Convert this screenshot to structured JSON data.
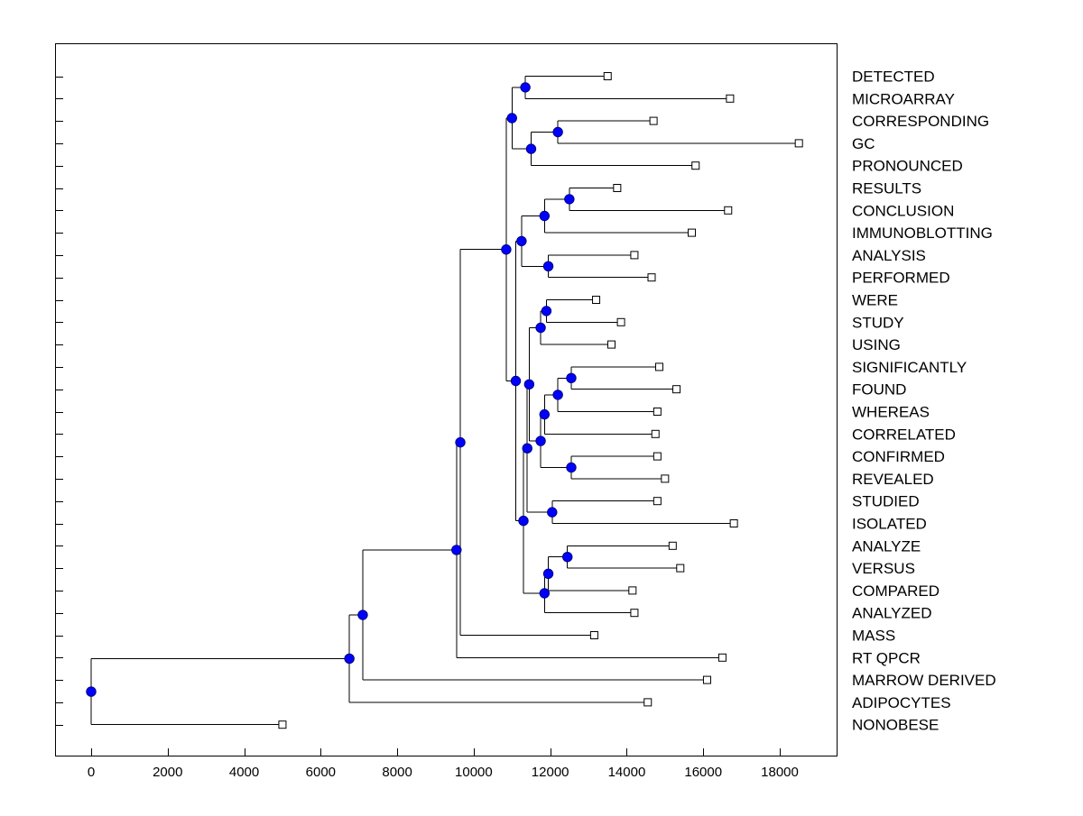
{
  "chart_data": {
    "type": "dendrogram",
    "orientation": "horizontal",
    "title": "",
    "xlabel": "",
    "ylabel": "",
    "xlim": [
      -1000,
      19500
    ],
    "x_ticks": [
      0,
      2000,
      4000,
      6000,
      8000,
      10000,
      12000,
      14000,
      16000,
      18000
    ],
    "leaves": [
      {
        "label": "DETECTED",
        "x": 13500
      },
      {
        "label": "MICROARRAY",
        "x": 16700
      },
      {
        "label": "CORRESPONDING",
        "x": 14700
      },
      {
        "label": "GC",
        "x": 18500
      },
      {
        "label": "PRONOUNCED",
        "x": 15800
      },
      {
        "label": "RESULTS",
        "x": 13750
      },
      {
        "label": "CONCLUSION",
        "x": 16650
      },
      {
        "label": "IMMUNOBLOTTING",
        "x": 15700
      },
      {
        "label": "ANALYSIS",
        "x": 14200
      },
      {
        "label": "PERFORMED",
        "x": 14650
      },
      {
        "label": "WERE",
        "x": 13200
      },
      {
        "label": "STUDY",
        "x": 13850
      },
      {
        "label": "USING",
        "x": 13600
      },
      {
        "label": "SIGNIFICANTLY",
        "x": 14850
      },
      {
        "label": "FOUND",
        "x": 15300
      },
      {
        "label": "WHEREAS",
        "x": 14800
      },
      {
        "label": "CORRELATED",
        "x": 14750
      },
      {
        "label": "CONFIRMED",
        "x": 14800
      },
      {
        "label": "REVEALED",
        "x": 15000
      },
      {
        "label": "STUDIED",
        "x": 14800
      },
      {
        "label": "ISOLATED",
        "x": 16800
      },
      {
        "label": "ANALYZE",
        "x": 15200
      },
      {
        "label": "VERSUS",
        "x": 15400
      },
      {
        "label": "COMPARED",
        "x": 14150
      },
      {
        "label": "ANALYZED",
        "x": 14200
      },
      {
        "label": "MASS",
        "x": 13150
      },
      {
        "label": "RT QPCR",
        "x": 16500
      },
      {
        "label": "MARROW DERIVED",
        "x": 16100
      },
      {
        "label": "ADIPOCYTES",
        "x": 14550
      },
      {
        "label": "NONOBESE",
        "x": 5000
      }
    ],
    "merges": [
      {
        "id": "n1",
        "x": 11350,
        "children": [
          "DETECTED",
          "MICROARRAY"
        ]
      },
      {
        "id": "n2",
        "x": 12200,
        "children": [
          "CORRESPONDING",
          "GC"
        ]
      },
      {
        "id": "n3",
        "x": 11500,
        "children": [
          "n2",
          "PRONOUNCED"
        ]
      },
      {
        "id": "n4",
        "x": 11000,
        "children": [
          "n1",
          "n3"
        ]
      },
      {
        "id": "n5",
        "x": 12500,
        "children": [
          "RESULTS",
          "CONCLUSION"
        ]
      },
      {
        "id": "n6",
        "x": 11850,
        "children": [
          "n5",
          "IMMUNOBLOTTING"
        ]
      },
      {
        "id": "n7",
        "x": 11950,
        "children": [
          "ANALYSIS",
          "PERFORMED"
        ]
      },
      {
        "id": "n8",
        "x": 11250,
        "children": [
          "n6",
          "n7"
        ]
      },
      {
        "id": "n9",
        "x": 11900,
        "children": [
          "WERE",
          "STUDY"
        ]
      },
      {
        "id": "n10",
        "x": 11750,
        "children": [
          "n9",
          "USING"
        ]
      },
      {
        "id": "n11",
        "x": 12550,
        "children": [
          "SIGNIFICANTLY",
          "FOUND"
        ]
      },
      {
        "id": "n12",
        "x": 12200,
        "children": [
          "n11",
          "WHEREAS"
        ]
      },
      {
        "id": "n13",
        "x": 11850,
        "children": [
          "n12",
          "CORRELATED"
        ]
      },
      {
        "id": "n14",
        "x": 12550,
        "children": [
          "CONFIRMED",
          "REVEALED"
        ]
      },
      {
        "id": "n15",
        "x": 11750,
        "children": [
          "n13",
          "n14"
        ]
      },
      {
        "id": "n16",
        "x": 11450,
        "children": [
          "n10",
          "n15"
        ]
      },
      {
        "id": "n17",
        "x": 12050,
        "children": [
          "STUDIED",
          "ISOLATED"
        ]
      },
      {
        "id": "n18",
        "x": 11400,
        "children": [
          "n16",
          "n17"
        ]
      },
      {
        "id": "n19",
        "x": 12450,
        "children": [
          "ANALYZE",
          "VERSUS"
        ]
      },
      {
        "id": "n20",
        "x": 11950,
        "children": [
          "n19",
          "COMPARED"
        ]
      },
      {
        "id": "n21",
        "x": 11850,
        "children": [
          "n20",
          "ANALYZED"
        ]
      },
      {
        "id": "n22",
        "x": 11300,
        "children": [
          "n18",
          "n21"
        ]
      },
      {
        "id": "n23",
        "x": 11100,
        "children": [
          "n8",
          "n22"
        ]
      },
      {
        "id": "n24",
        "x": 10850,
        "children": [
          "n4",
          "n23"
        ]
      },
      {
        "id": "n25",
        "x": 9650,
        "children": [
          "n24",
          "MASS"
        ]
      },
      {
        "id": "n26",
        "x": 9550,
        "children": [
          "n25",
          "RT QPCR"
        ]
      },
      {
        "id": "n27",
        "x": 7100,
        "children": [
          "n26",
          "MARROW DERIVED"
        ]
      },
      {
        "id": "n28",
        "x": 6750,
        "children": [
          "n27",
          "ADIPOCYTES"
        ]
      },
      {
        "id": "n29",
        "x": 0,
        "children": [
          "n28",
          "NONOBESE"
        ]
      }
    ],
    "colors": {
      "node_fill": "#0000ff",
      "node_stroke": "#000080",
      "leaf_fill": "#ffffff",
      "line": "#000000"
    }
  }
}
